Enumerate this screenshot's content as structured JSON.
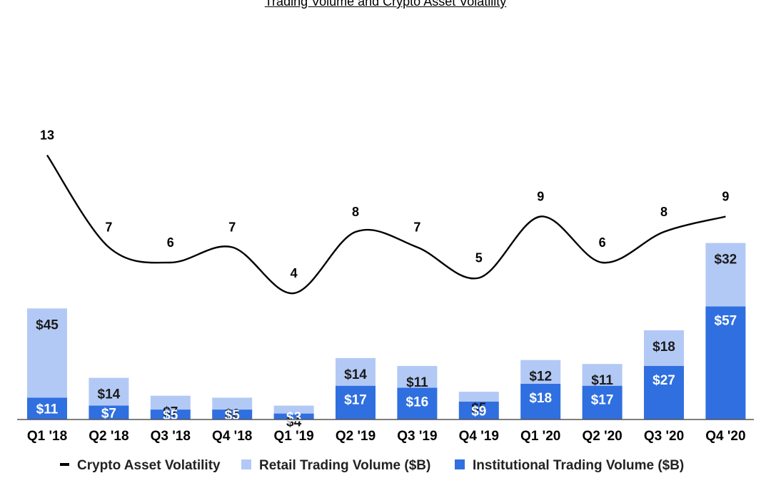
{
  "chart_data": {
    "type": "bar",
    "title": "Trading Volume and Crypto Asset Volatility",
    "categories": [
      "Q1 '18",
      "Q2 '18",
      "Q3 '18",
      "Q4 '18",
      "Q1 '19",
      "Q2 '19",
      "Q3 '19",
      "Q4 '19",
      "Q1 '20",
      "Q2 '20",
      "Q3 '20",
      "Q4 '20"
    ],
    "stacked": true,
    "series": [
      {
        "name": "Institutional Trading Volume ($B)",
        "kind": "bar",
        "color": "#2f6fe0",
        "values": [
          11,
          7,
          5,
          5,
          3,
          17,
          16,
          9,
          18,
          17,
          27,
          57
        ],
        "labels": [
          "$11",
          "$7",
          "$5",
          "$5",
          "$3",
          "$17",
          "$16",
          "$9",
          "$18",
          "$17",
          "$27",
          "$57"
        ]
      },
      {
        "name": "Retail Trading Volume ($B)",
        "kind": "bar",
        "color": "#b3c9f5",
        "values": [
          45,
          14,
          7,
          6,
          4,
          14,
          11,
          5,
          12,
          11,
          18,
          32
        ],
        "labels": [
          "$45",
          "$14",
          "$7",
          "$6",
          "$4",
          "$14",
          "$11",
          "$5",
          "$12",
          "$11",
          "$18",
          "$32"
        ]
      },
      {
        "name": "Crypto Asset Volatility",
        "kind": "line",
        "color": "#000000",
        "values": [
          13,
          7,
          6,
          7,
          4,
          8,
          7,
          5,
          9,
          6,
          8,
          9
        ],
        "labels": [
          "13",
          "7",
          "6",
          "7",
          "4",
          "8",
          "7",
          "5",
          "9",
          "6",
          "8",
          "9"
        ]
      }
    ],
    "legend": "bottom",
    "grid": false
  }
}
